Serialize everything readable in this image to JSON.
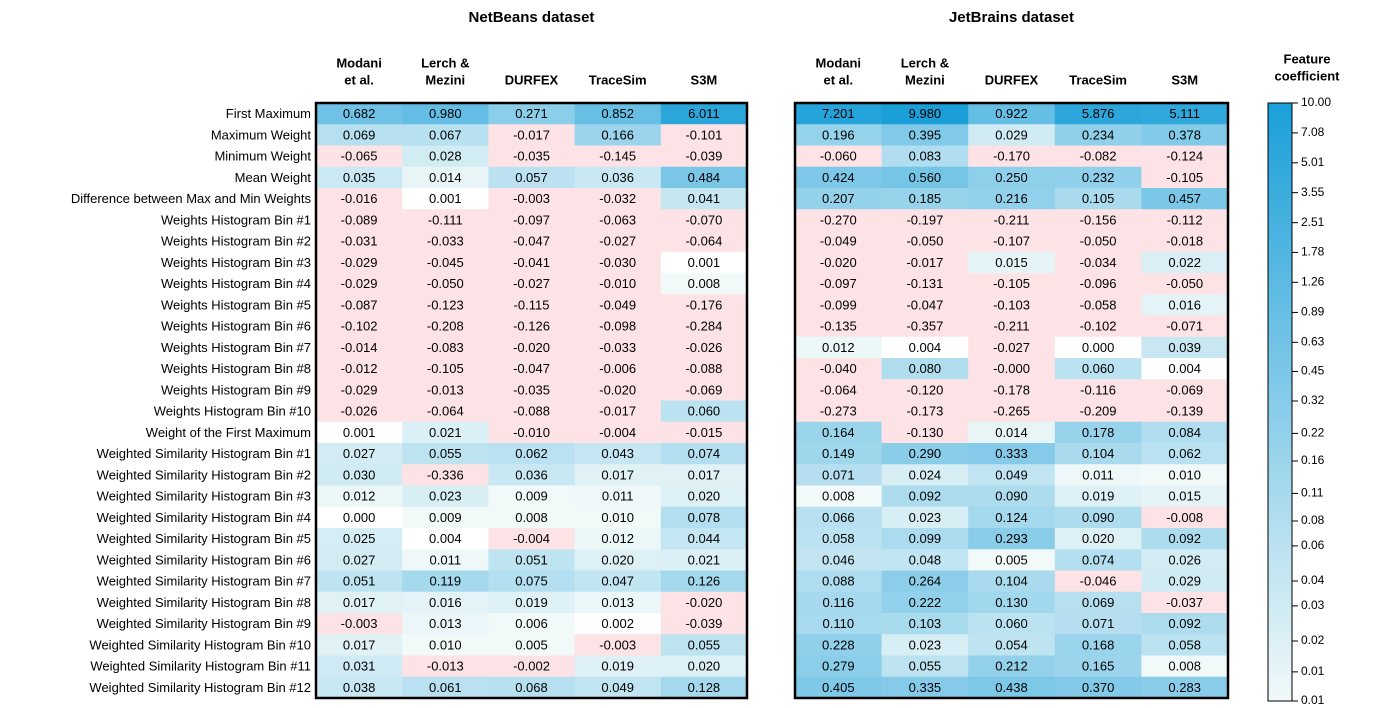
{
  "chart_data": {
    "type": "heatmap",
    "rows": [
      "First Maximum",
      "Maximum Weight",
      "Minimum Weight",
      "Mean Weight",
      "Difference between Max and Min Weights",
      "Weights Histogram Bin #1",
      "Weights Histogram Bin #2",
      "Weights Histogram Bin #3",
      "Weights Histogram Bin #4",
      "Weights Histogram Bin #5",
      "Weights Histogram Bin #6",
      "Weights Histogram Bin #7",
      "Weights Histogram Bin #8",
      "Weights Histogram Bin #9",
      "Weights Histogram Bin #10",
      "Weight of the First Maximum",
      "Weighted Similarity Histogram Bin #1",
      "Weighted Similarity Histogram Bin #2",
      "Weighted Similarity Histogram Bin #3",
      "Weighted Similarity Histogram Bin #4",
      "Weighted Similarity Histogram Bin #5",
      "Weighted Similarity Histogram Bin #6",
      "Weighted Similarity Histogram Bin #7",
      "Weighted Similarity Histogram Bin #8",
      "Weighted Similarity Histogram Bin #9",
      "Weighted Similarity Histogram Bin #10",
      "Weighted Similarity Histogram Bin #11",
      "Weighted Similarity Histogram Bin #12"
    ],
    "columns": [
      [
        "Modani",
        "et al."
      ],
      [
        "Lerch &",
        "Mezini"
      ],
      [
        "DURFEX"
      ],
      [
        "TraceSim"
      ],
      [
        "S3M"
      ]
    ],
    "panels": [
      {
        "title": "NetBeans dataset",
        "values": [
          [
            0.682,
            0.98,
            0.271,
            0.852,
            6.011
          ],
          [
            0.069,
            0.067,
            -0.017,
            0.166,
            -0.101
          ],
          [
            -0.065,
            0.028,
            -0.035,
            -0.145,
            -0.039
          ],
          [
            0.035,
            0.014,
            0.057,
            0.036,
            0.484
          ],
          [
            -0.016,
            0.001,
            -0.003,
            -0.032,
            0.041
          ],
          [
            -0.089,
            -0.111,
            -0.097,
            -0.063,
            -0.07
          ],
          [
            -0.031,
            -0.033,
            -0.047,
            -0.027,
            -0.064
          ],
          [
            -0.029,
            -0.045,
            -0.041,
            -0.03,
            0.001
          ],
          [
            -0.029,
            -0.05,
            -0.027,
            -0.01,
            0.008
          ],
          [
            -0.087,
            -0.123,
            -0.115,
            -0.049,
            -0.176
          ],
          [
            -0.102,
            -0.208,
            -0.126,
            -0.098,
            -0.284
          ],
          [
            -0.014,
            -0.083,
            -0.02,
            -0.033,
            -0.026
          ],
          [
            -0.012,
            -0.105,
            -0.047,
            -0.006,
            -0.088
          ],
          [
            -0.029,
            -0.013,
            -0.035,
            -0.02,
            -0.069
          ],
          [
            -0.026,
            -0.064,
            -0.088,
            -0.017,
            0.06
          ],
          [
            0.001,
            0.021,
            -0.01,
            -0.004,
            -0.015
          ],
          [
            0.027,
            0.055,
            0.062,
            0.043,
            0.074
          ],
          [
            0.03,
            -0.336,
            0.036,
            0.017,
            0.017
          ],
          [
            0.012,
            0.023,
            0.009,
            0.011,
            0.02
          ],
          [
            0.0,
            0.009,
            0.008,
            0.01,
            0.078
          ],
          [
            0.025,
            0.004,
            -0.004,
            0.012,
            0.044
          ],
          [
            0.027,
            0.011,
            0.051,
            0.02,
            0.021
          ],
          [
            0.051,
            0.119,
            0.075,
            0.047,
            0.126
          ],
          [
            0.017,
            0.016,
            0.019,
            0.013,
            -0.02
          ],
          [
            -0.003,
            0.013,
            0.006,
            0.002,
            -0.039
          ],
          [
            0.017,
            0.01,
            0.005,
            -0.003,
            0.055
          ],
          [
            0.031,
            -0.013,
            -0.002,
            0.019,
            0.02
          ],
          [
            0.038,
            0.061,
            0.068,
            0.049,
            0.128
          ]
        ],
        "value_labels": [
          [
            "0.682",
            "0.980",
            "0.271",
            "0.852",
            "6.011"
          ],
          [
            "0.069",
            "0.067",
            "-0.017",
            "0.166",
            "-0.101"
          ],
          [
            "-0.065",
            "0.028",
            "-0.035",
            "-0.145",
            "-0.039"
          ],
          [
            "0.035",
            "0.014",
            "0.057",
            "0.036",
            "0.484"
          ],
          [
            "-0.016",
            "0.001",
            "-0.003",
            "-0.032",
            "0.041"
          ],
          [
            "-0.089",
            "-0.111",
            "-0.097",
            "-0.063",
            "-0.070"
          ],
          [
            "-0.031",
            "-0.033",
            "-0.047",
            "-0.027",
            "-0.064"
          ],
          [
            "-0.029",
            "-0.045",
            "-0.041",
            "-0.030",
            "0.001"
          ],
          [
            "-0.029",
            "-0.050",
            "-0.027",
            "-0.010",
            "0.008"
          ],
          [
            "-0.087",
            "-0.123",
            "-0.115",
            "-0.049",
            "-0.176"
          ],
          [
            "-0.102",
            "-0.208",
            "-0.126",
            "-0.098",
            "-0.284"
          ],
          [
            "-0.014",
            "-0.083",
            "-0.020",
            "-0.033",
            "-0.026"
          ],
          [
            "-0.012",
            "-0.105",
            "-0.047",
            "-0.006",
            "-0.088"
          ],
          [
            "-0.029",
            "-0.013",
            "-0.035",
            "-0.020",
            "-0.069"
          ],
          [
            "-0.026",
            "-0.064",
            "-0.088",
            "-0.017",
            "0.060"
          ],
          [
            "0.001",
            "0.021",
            "-0.010",
            "-0.004",
            "-0.015"
          ],
          [
            "0.027",
            "0.055",
            "0.062",
            "0.043",
            "0.074"
          ],
          [
            "0.030",
            "-0.336",
            "0.036",
            "0.017",
            "0.017"
          ],
          [
            "0.012",
            "0.023",
            "0.009",
            "0.011",
            "0.020"
          ],
          [
            "0.000",
            "0.009",
            "0.008",
            "0.010",
            "0.078"
          ],
          [
            "0.025",
            "0.004",
            "-0.004",
            "0.012",
            "0.044"
          ],
          [
            "0.027",
            "0.011",
            "0.051",
            "0.020",
            "0.021"
          ],
          [
            "0.051",
            "0.119",
            "0.075",
            "0.047",
            "0.126"
          ],
          [
            "0.017",
            "0.016",
            "0.019",
            "0.013",
            "-0.020"
          ],
          [
            "-0.003",
            "0.013",
            "0.006",
            "0.002",
            "-0.039"
          ],
          [
            "0.017",
            "0.010",
            "0.005",
            "-0.003",
            "0.055"
          ],
          [
            "0.031",
            "-0.013",
            "-0.002",
            "0.019",
            "0.020"
          ],
          [
            "0.038",
            "0.061",
            "0.068",
            "0.049",
            "0.128"
          ]
        ]
      },
      {
        "title": "JetBrains dataset",
        "values": [
          [
            7.201,
            9.98,
            0.922,
            5.876,
            5.111
          ],
          [
            0.196,
            0.395,
            0.029,
            0.234,
            0.378
          ],
          [
            -0.06,
            0.083,
            -0.17,
            -0.082,
            -0.124
          ],
          [
            0.424,
            0.56,
            0.25,
            0.232,
            -0.105
          ],
          [
            0.207,
            0.185,
            0.216,
            0.105,
            0.457
          ],
          [
            -0.27,
            -0.197,
            -0.211,
            -0.156,
            -0.112
          ],
          [
            -0.049,
            -0.05,
            -0.107,
            -0.05,
            -0.018
          ],
          [
            -0.02,
            -0.017,
            0.015,
            -0.034,
            0.022
          ],
          [
            -0.097,
            -0.131,
            -0.105,
            -0.096,
            -0.05
          ],
          [
            -0.099,
            -0.047,
            -0.103,
            -0.058,
            0.016
          ],
          [
            -0.135,
            -0.357,
            -0.211,
            -0.102,
            -0.071
          ],
          [
            0.012,
            0.004,
            -0.027,
            0.0,
            0.039
          ],
          [
            -0.04,
            0.08,
            -0.0,
            0.06,
            0.004
          ],
          [
            -0.064,
            -0.12,
            -0.178,
            -0.116,
            -0.069
          ],
          [
            -0.273,
            -0.173,
            -0.265,
            -0.209,
            -0.139
          ],
          [
            0.164,
            -0.13,
            0.014,
            0.178,
            0.084
          ],
          [
            0.149,
            0.29,
            0.333,
            0.104,
            0.062
          ],
          [
            0.071,
            0.024,
            0.049,
            0.011,
            0.01
          ],
          [
            0.008,
            0.092,
            0.09,
            0.019,
            0.015
          ],
          [
            0.066,
            0.023,
            0.124,
            0.09,
            -0.008
          ],
          [
            0.058,
            0.099,
            0.293,
            0.02,
            0.092
          ],
          [
            0.046,
            0.048,
            0.005,
            0.074,
            0.026
          ],
          [
            0.088,
            0.264,
            0.104,
            -0.046,
            0.029
          ],
          [
            0.116,
            0.222,
            0.13,
            0.069,
            -0.037
          ],
          [
            0.11,
            0.103,
            0.06,
            0.071,
            0.092
          ],
          [
            0.228,
            0.023,
            0.054,
            0.168,
            0.058
          ],
          [
            0.279,
            0.055,
            0.212,
            0.165,
            0.008
          ],
          [
            0.405,
            0.335,
            0.438,
            0.37,
            0.283
          ]
        ],
        "value_labels": [
          [
            "7.201",
            "9.980",
            "0.922",
            "5.876",
            "5.111"
          ],
          [
            "0.196",
            "0.395",
            "0.029",
            "0.234",
            "0.378"
          ],
          [
            "-0.060",
            "0.083",
            "-0.170",
            "-0.082",
            "-0.124"
          ],
          [
            "0.424",
            "0.560",
            "0.250",
            "0.232",
            "-0.105"
          ],
          [
            "0.207",
            "0.185",
            "0.216",
            "0.105",
            "0.457"
          ],
          [
            "-0.270",
            "-0.197",
            "-0.211",
            "-0.156",
            "-0.112"
          ],
          [
            "-0.049",
            "-0.050",
            "-0.107",
            "-0.050",
            "-0.018"
          ],
          [
            "-0.020",
            "-0.017",
            "0.015",
            "-0.034",
            "0.022"
          ],
          [
            "-0.097",
            "-0.131",
            "-0.105",
            "-0.096",
            "-0.050"
          ],
          [
            "-0.099",
            "-0.047",
            "-0.103",
            "-0.058",
            "0.016"
          ],
          [
            "-0.135",
            "-0.357",
            "-0.211",
            "-0.102",
            "-0.071"
          ],
          [
            "0.012",
            "0.004",
            "-0.027",
            "0.000",
            "0.039"
          ],
          [
            "-0.040",
            "0.080",
            "-0.000",
            "0.060",
            "0.004"
          ],
          [
            "-0.064",
            "-0.120",
            "-0.178",
            "-0.116",
            "-0.069"
          ],
          [
            "-0.273",
            "-0.173",
            "-0.265",
            "-0.209",
            "-0.139"
          ],
          [
            "0.164",
            "-0.130",
            "0.014",
            "0.178",
            "0.084"
          ],
          [
            "0.149",
            "0.290",
            "0.333",
            "0.104",
            "0.062"
          ],
          [
            "0.071",
            "0.024",
            "0.049",
            "0.011",
            "0.010"
          ],
          [
            "0.008",
            "0.092",
            "0.090",
            "0.019",
            "0.015"
          ],
          [
            "0.066",
            "0.023",
            "0.124",
            "0.090",
            "-0.008"
          ],
          [
            "0.058",
            "0.099",
            "0.293",
            "0.020",
            "0.092"
          ],
          [
            "0.046",
            "0.048",
            "0.005",
            "0.074",
            "0.026"
          ],
          [
            "0.088",
            "0.264",
            "0.104",
            "-0.046",
            "0.029"
          ],
          [
            "0.116",
            "0.222",
            "0.130",
            "0.069",
            "-0.037"
          ],
          [
            "0.110",
            "0.103",
            "0.060",
            "0.071",
            "0.092"
          ],
          [
            "0.228",
            "0.023",
            "0.054",
            "0.168",
            "0.058"
          ],
          [
            "0.279",
            "0.055",
            "0.212",
            "0.165",
            "0.008"
          ],
          [
            "0.405",
            "0.335",
            "0.438",
            "0.370",
            "0.283"
          ]
        ]
      }
    ],
    "colorbar": {
      "title": [
        "Feature",
        "coefficient"
      ],
      "log": true,
      "clim": [
        0.01,
        10
      ],
      "ticks": [
        {
          "value": 10,
          "label": "10.00"
        },
        7.08,
        5.01,
        3.55,
        2.51,
        1.78,
        1.26,
        0.89,
        0.63,
        0.45,
        0.32,
        0.22,
        0.16,
        0.11,
        0.08,
        0.06,
        0.04,
        0.03,
        0.02,
        {
          "value": 0.014,
          "label": "0.01"
        },
        0.01
      ],
      "low_color": "#f2f9f9",
      "high_color": "#1b9fd9",
      "negative_color": "#fde3e5"
    }
  }
}
